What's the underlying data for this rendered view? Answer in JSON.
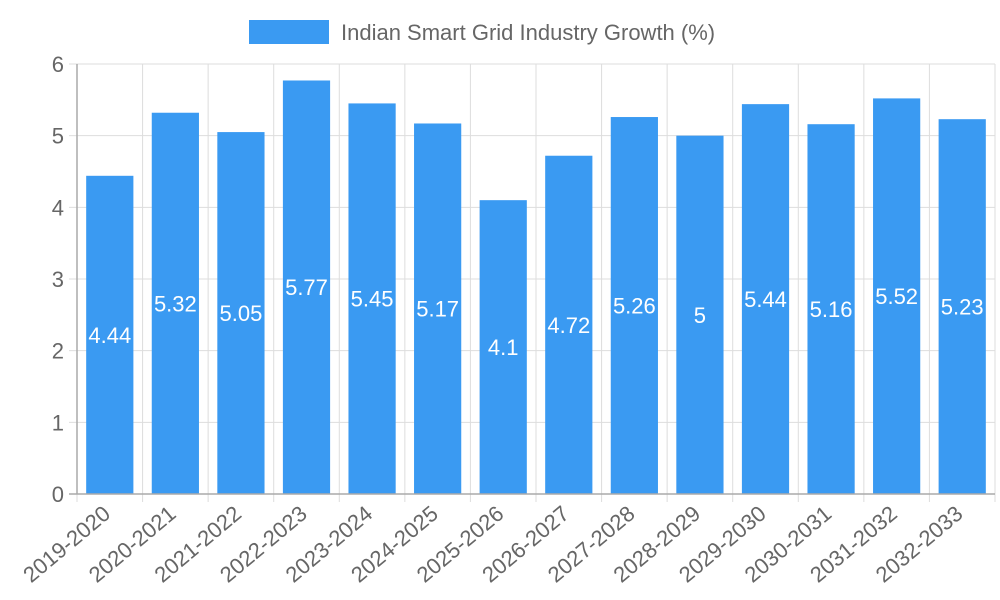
{
  "chart_data": {
    "type": "bar",
    "categories": [
      "2019-2020",
      "2020-2021",
      "2021-2022",
      "2022-2023",
      "2023-2024",
      "2024-2025",
      "2025-2026",
      "2026-2027",
      "2027-2028",
      "2028-2029",
      "2029-2030",
      "2030-2031",
      "2031-2032",
      "2032-2033"
    ],
    "series": [
      {
        "name": "Indian Smart Grid Industry Growth (%)",
        "values": [
          4.44,
          5.32,
          5.05,
          5.77,
          5.45,
          5.17,
          4.1,
          4.72,
          5.26,
          5,
          5.44,
          5.16,
          5.52,
          5.23
        ],
        "color": "#3a9af2"
      }
    ],
    "ylim": [
      0,
      6
    ],
    "yticks": [
      "0",
      "1",
      "2",
      "3",
      "4",
      "5",
      "6"
    ],
    "grid": true,
    "legend": "top-center",
    "xlabel": "",
    "ylabel": "",
    "title": ""
  },
  "colors": {
    "bar": "#3a9af2",
    "grid": "#dddddd",
    "axis": "#aaaaaa",
    "text": "#666666",
    "label": "#ffffff"
  }
}
